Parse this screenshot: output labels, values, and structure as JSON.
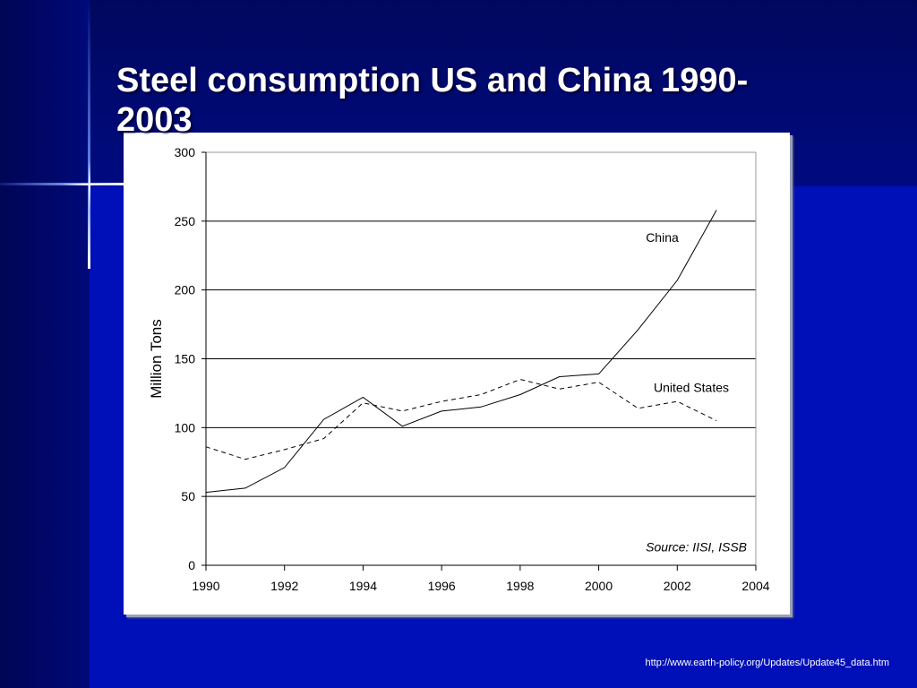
{
  "slide": {
    "title": "Steel consumption US and China 1990-2003",
    "source_url": "http://www.earth-policy.org/Updates/Update45_data.htm"
  },
  "colors": {
    "background": "#0010b8",
    "title": "#ffffff",
    "chart_line": "#000000"
  },
  "chart_data": {
    "type": "line",
    "title": "",
    "xlabel": "",
    "ylabel": "Million Tons",
    "xlim": [
      1990,
      2004
    ],
    "ylim": [
      0,
      300
    ],
    "x_ticks": [
      1990,
      1992,
      1994,
      1996,
      1998,
      2000,
      2002,
      2004
    ],
    "y_ticks": [
      0,
      50,
      100,
      150,
      200,
      250,
      300
    ],
    "grid": "horizontal",
    "source_note": "Source: IISI, ISSB",
    "series": [
      {
        "name": "China",
        "style": "solid",
        "x": [
          1990,
          1991,
          1992,
          1993,
          1994,
          1995,
          1996,
          1997,
          1998,
          1999,
          2000,
          2001,
          2002,
          2003
        ],
        "values": [
          53,
          56,
          71,
          106,
          122,
          101,
          112,
          115,
          124,
          137,
          139,
          171,
          207,
          258
        ]
      },
      {
        "name": "United States",
        "style": "dashed",
        "x": [
          1990,
          1991,
          1992,
          1993,
          1994,
          1995,
          1996,
          1997,
          1998,
          1999,
          2000,
          2001,
          2002,
          2003
        ],
        "values": [
          86,
          77,
          84,
          92,
          118,
          112,
          119,
          124,
          135,
          128,
          133,
          114,
          119,
          105
        ]
      }
    ]
  }
}
